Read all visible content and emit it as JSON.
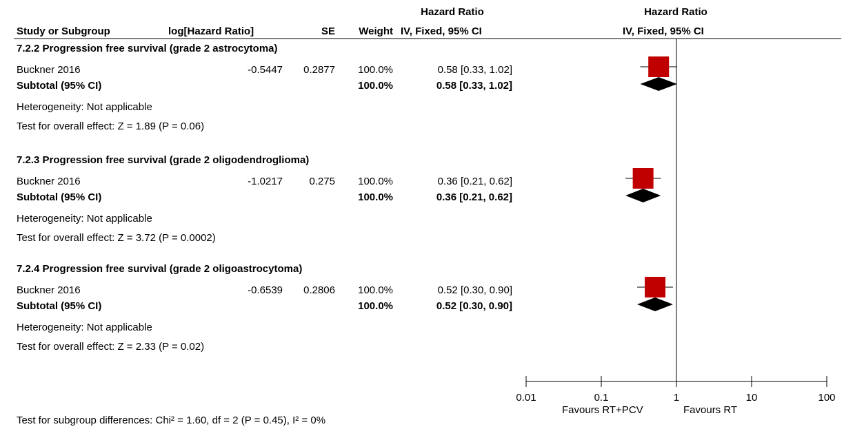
{
  "header": {
    "hr_title_left": "Hazard Ratio",
    "hr_title_right": "Hazard Ratio",
    "col_study": "Study or Subgroup",
    "col_loghr": "log[Hazard Ratio]",
    "col_se": "SE",
    "col_weight": "Weight",
    "col_method_left": "IV, Fixed, 95% CI",
    "col_method_right": "IV, Fixed, 95% CI"
  },
  "subgroups": [
    {
      "title": "7.2.2 Progression free survival (grade 2 astrocytoma)",
      "study": {
        "name": "Buckner 2016",
        "loghr": "-0.5447",
        "se": "0.2877",
        "weight": "100.0%",
        "ci_text": "0.58 [0.33, 1.02]"
      },
      "subtotal": {
        "label": "Subtotal (95% CI)",
        "weight": "100.0%",
        "ci_text": "0.58 [0.33, 1.02]"
      },
      "heterogeneity": "Heterogeneity: Not applicable",
      "overall_effect": "Test for overall effect: Z = 1.89 (P = 0.06)"
    },
    {
      "title": "7.2.3 Progression free survival (grade 2 oligodendroglioma)",
      "study": {
        "name": "Buckner 2016",
        "loghr": "-1.0217",
        "se": "0.275",
        "weight": "100.0%",
        "ci_text": "0.36 [0.21, 0.62]"
      },
      "subtotal": {
        "label": "Subtotal (95% CI)",
        "weight": "100.0%",
        "ci_text": "0.36 [0.21, 0.62]"
      },
      "heterogeneity": "Heterogeneity: Not applicable",
      "overall_effect": "Test for overall effect: Z = 3.72 (P = 0.0002)"
    },
    {
      "title": "7.2.4 Progression free survival (grade 2 oligoastrocytoma)",
      "study": {
        "name": "Buckner 2016",
        "loghr": "-0.6539",
        "se": "0.2806",
        "weight": "100.0%",
        "ci_text": "0.52 [0.30, 0.90]"
      },
      "subtotal": {
        "label": "Subtotal (95% CI)",
        "weight": "100.0%",
        "ci_text": "0.52 [0.30, 0.90]"
      },
      "heterogeneity": "Heterogeneity: Not applicable",
      "overall_effect": "Test for overall effect: Z = 2.33 (P = 0.02)"
    }
  ],
  "footer": {
    "subgroup_test": "Test for subgroup differences: Chi² = 1.60, df = 2 (P = 0.45), I² = 0%",
    "favours_left": "Favours RT+PCV",
    "favours_right": "Favours RT"
  },
  "colors": {
    "marker": "#c00000",
    "diamond": "#000000",
    "line": "#000000"
  },
  "chart_data": {
    "type": "forest",
    "scale": "log",
    "xlim": [
      0.01,
      100
    ],
    "ticks": [
      {
        "value": 0.01,
        "label": "0.01"
      },
      {
        "value": 0.1,
        "label": "0.1"
      },
      {
        "value": 1,
        "label": "1"
      },
      {
        "value": 10,
        "label": "10"
      },
      {
        "value": 100,
        "label": "100"
      }
    ],
    "null_line": 1,
    "studies": [
      {
        "subgroup": 0,
        "hr": 0.58,
        "lower": 0.33,
        "upper": 1.02,
        "weight": 100.0
      },
      {
        "subgroup": 1,
        "hr": 0.36,
        "lower": 0.21,
        "upper": 0.62,
        "weight": 100.0
      },
      {
        "subgroup": 2,
        "hr": 0.52,
        "lower": 0.3,
        "upper": 0.9,
        "weight": 100.0
      }
    ],
    "subtotals": [
      {
        "subgroup": 0,
        "hr": 0.58,
        "lower": 0.33,
        "upper": 1.02
      },
      {
        "subgroup": 1,
        "hr": 0.36,
        "lower": 0.21,
        "upper": 0.62
      },
      {
        "subgroup": 2,
        "hr": 0.52,
        "lower": 0.3,
        "upper": 0.9
      }
    ]
  }
}
